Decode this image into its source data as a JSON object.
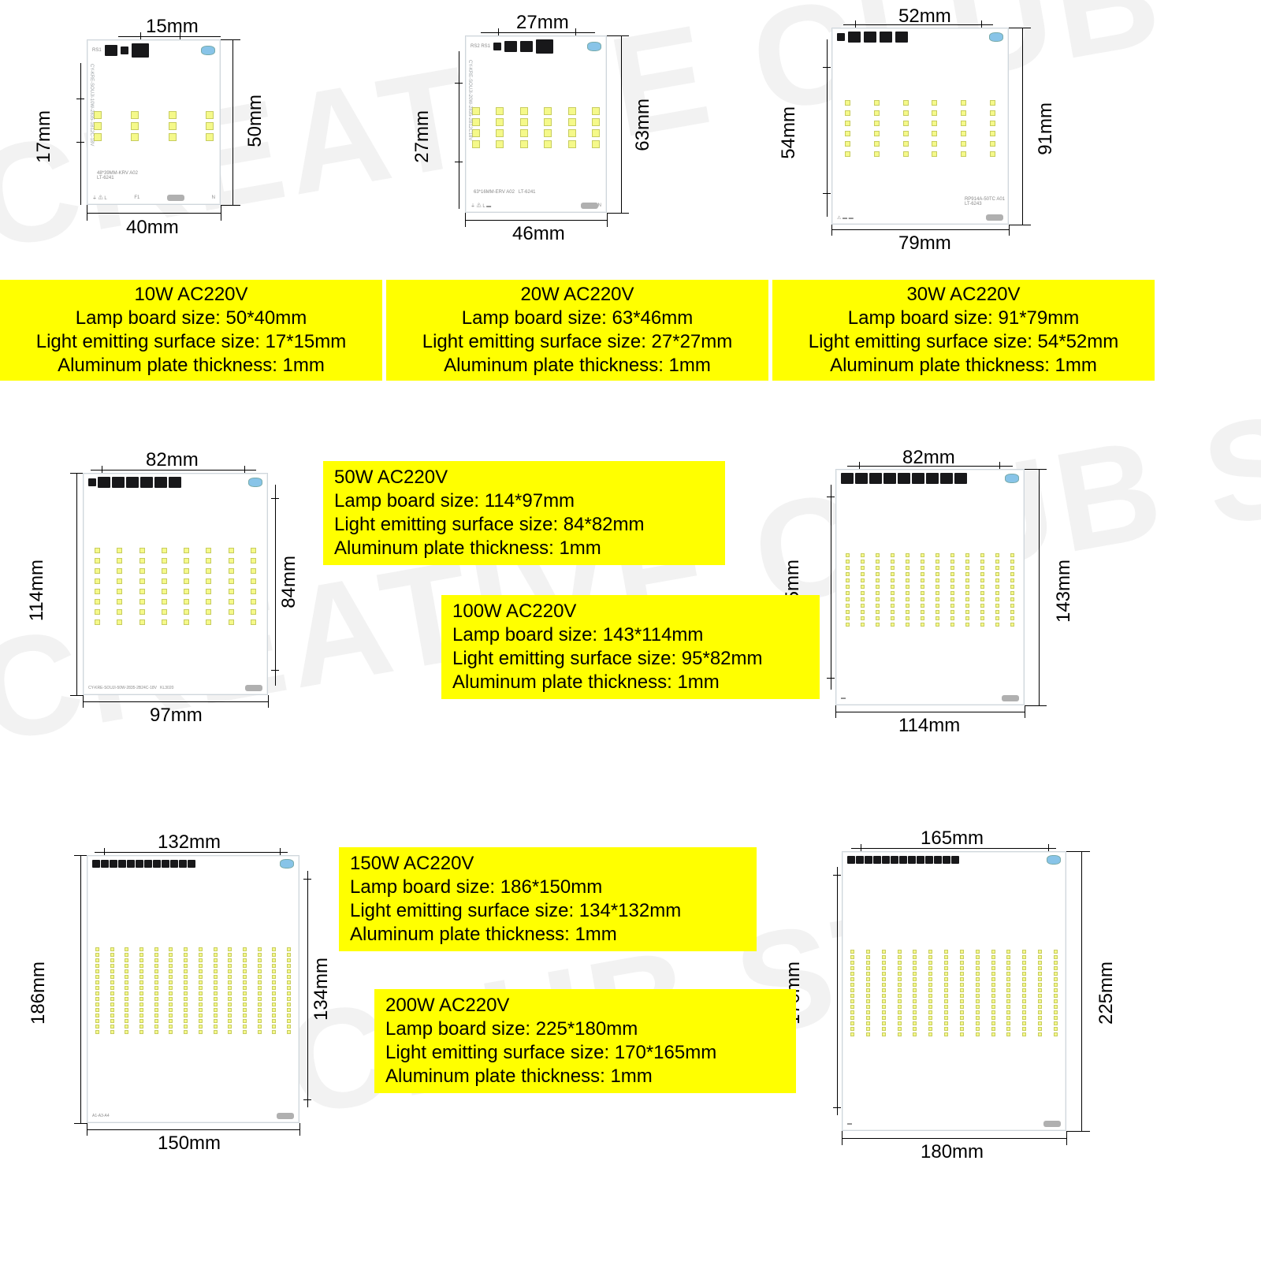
{
  "colors": {
    "spec_bg": "#ffff00",
    "spec_text": "#000000",
    "led": "#f5f98a",
    "led_border": "#c7cc60",
    "ic": "#18181a",
    "board_bg": "#ffffff",
    "board_border": "#cfd6dc",
    "dim_color": "#000000"
  },
  "boards": {
    "b10": {
      "top_dim": "15mm",
      "bottom_dim": "40mm",
      "left_outer": "17mm",
      "right_outer": "50mm",
      "led_rows": 3,
      "led_cols": 4
    },
    "b20": {
      "top_dim": "27mm",
      "bottom_dim": "46mm",
      "left_outer": "27mm",
      "right_outer": "63mm",
      "led_rows": 4,
      "led_cols": 6
    },
    "b30": {
      "top_dim": "52mm",
      "bottom_dim": "79mm",
      "left_outer": "54mm",
      "right_outer": "91mm",
      "led_rows": 6,
      "led_cols": 6
    },
    "b50": {
      "top_dim": "82mm",
      "bottom_dim": "97mm",
      "left_outer": "114mm",
      "inner_left": "84mm",
      "led_rows": 8,
      "led_cols": 8
    },
    "b100": {
      "top_dim": "82mm",
      "bottom_dim": "114mm",
      "left_outer": "95mm",
      "right_outer": "143mm",
      "led_rows": 12,
      "led_cols": 12
    },
    "b150": {
      "top_dim": "132mm",
      "bottom_dim": "150mm",
      "left_outer": "186mm",
      "inner_left": "134mm",
      "led_rows": 16,
      "led_cols": 14
    },
    "b200": {
      "top_dim": "165mm",
      "bottom_dim": "180mm",
      "left_outer": "170mm",
      "right_outer": "225mm",
      "led_rows": 16,
      "led_cols": 14
    }
  },
  "specs": {
    "s10": {
      "title": "10W AC220V",
      "l1": "Lamp board size:  50*40mm",
      "l2": "Light emitting surface size: 17*15mm",
      "l3": "Aluminum plate thickness: 1mm"
    },
    "s20": {
      "title": "20W AC220V",
      "l1": "Lamp board size:  63*46mm",
      "l2": "Light emitting surface size:  27*27mm",
      "l3": "Aluminum plate thickness: 1mm"
    },
    "s30": {
      "title": "30W AC220V",
      "l1": "Lamp board size:  91*79mm",
      "l2": "Light emitting surface size:  54*52mm",
      "l3": "Aluminum plate thickness: 1mm"
    },
    "s50": {
      "title": "50W AC220V",
      "l1": "Lamp board size:  114*97mm",
      "l2": "Light emitting surface size:  84*82mm",
      "l3": "Aluminum plate thickness: 1mm"
    },
    "s100": {
      "title": "100W AC220V",
      "l1": "Lamp board size:  143*114mm",
      "l2": "Light emitting surface size:  95*82mm",
      "l3": "Aluminum plate thickness: 1mm"
    },
    "s150": {
      "title": "150W AC220V",
      "l1": "Lamp board size:  186*150mm",
      "l2": "Light emitting surface size:  134*132mm",
      "l3": "Aluminum plate thickness: 1mm"
    },
    "s200": {
      "title": "200W AC220V",
      "l1": "Lamp board size:  225*180mm",
      "l2": "Light emitting surface size:  170*165mm",
      "l3": "Aluminum plate thickness: 1mm"
    }
  }
}
